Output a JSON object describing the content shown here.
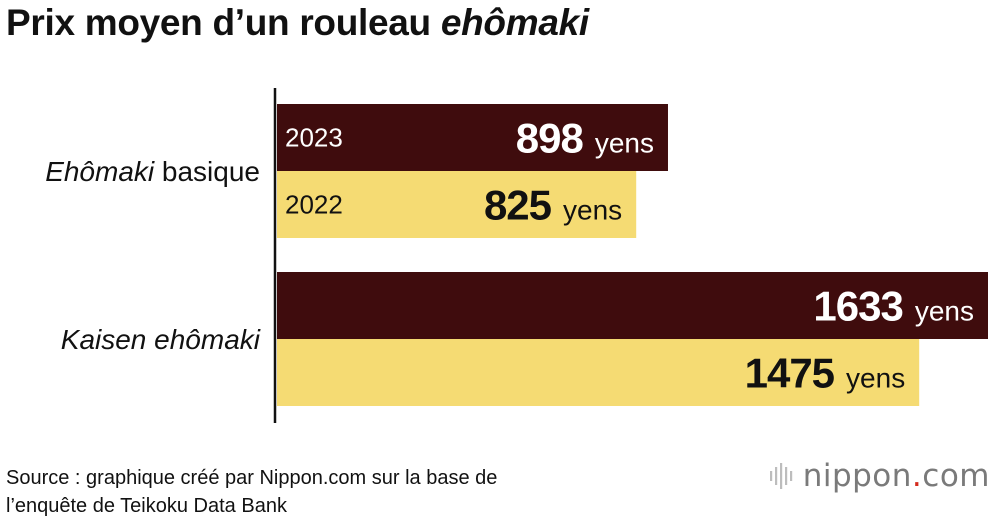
{
  "header": {
    "title_prefix": "Prix moyen d’un rouleau ",
    "title_italic": "ehômaki"
  },
  "chart_data": {
    "type": "bar",
    "orientation": "horizontal",
    "categories": [
      {
        "italic": "Ehômaki",
        "rest": " basique"
      },
      {
        "italic": "Kaisen ehômaki",
        "rest": ""
      }
    ],
    "series": [
      {
        "name": "2023",
        "values": [
          898,
          1633
        ],
        "color": "#3f0c0d"
      },
      {
        "name": "2022",
        "values": [
          825,
          1475
        ],
        "color": "#f5db73"
      }
    ],
    "unit": "yens",
    "xlim": [
      0,
      1633
    ],
    "grid": false,
    "legend": "none"
  },
  "footer": {
    "source_line1": "Source : graphique créé par Nippon.com sur la base de",
    "source_line2": "l’enquête de Teikoku Data Bank"
  },
  "logo": {
    "part1": "nippon",
    "dot": ".",
    "part2": "com",
    "icon": "nippon-bars-icon"
  }
}
